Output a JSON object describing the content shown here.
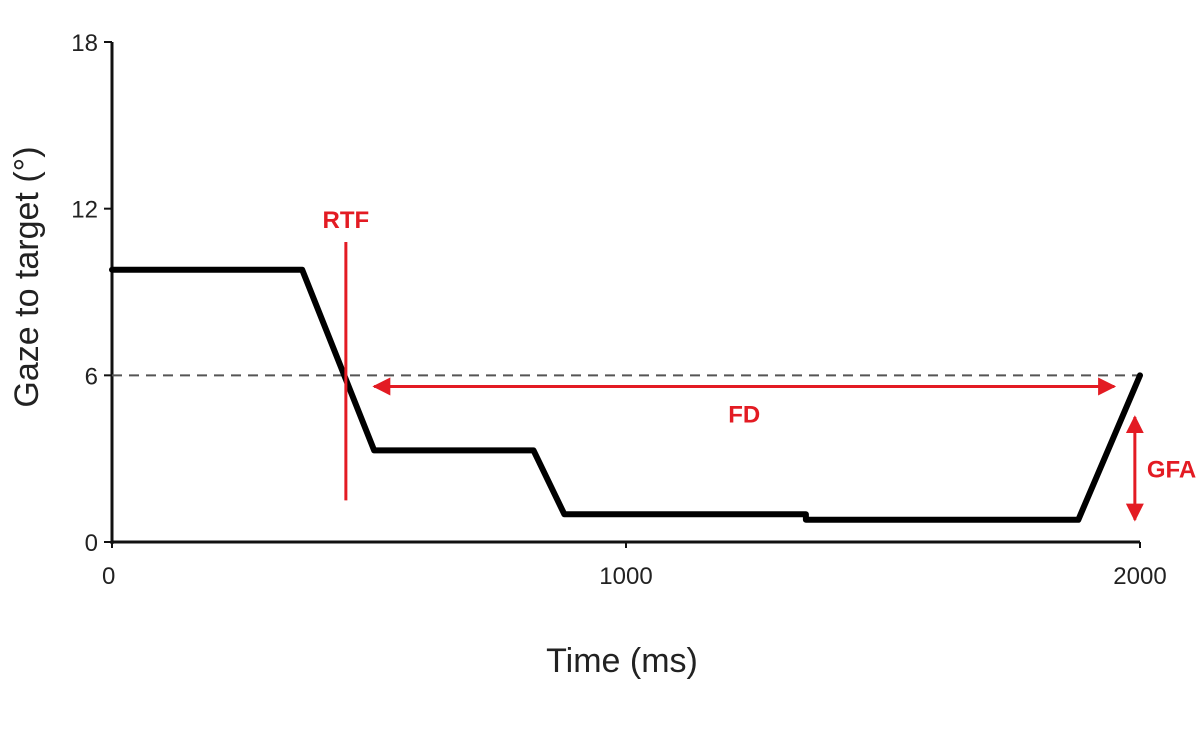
{
  "chart_data": {
    "type": "line",
    "xlabel": "Time (ms)",
    "ylabel": "Gaze to target (°)",
    "xlim": [
      0,
      2000
    ],
    "ylim": [
      0,
      18
    ],
    "xticks": [
      0,
      1000,
      2000
    ],
    "yticks": [
      0,
      6,
      12,
      18
    ],
    "grid": false,
    "series": [
      {
        "x": [
          0,
          370,
          510,
          820,
          880,
          1350,
          1350,
          1850,
          1880,
          2000
        ],
        "y": [
          9.8,
          9.8,
          3.3,
          3.3,
          1.0,
          1.0,
          0.8,
          0.8,
          0.8,
          6.0
        ],
        "color": "#000000"
      }
    ],
    "reference_lines": [
      {
        "axis": "y",
        "value": 6,
        "style": "dashed",
        "color": "#555555"
      }
    ],
    "annotations": [
      {
        "text": "RTF",
        "kind": "vertical-line",
        "x": 455,
        "y_range": [
          1.5,
          10.8
        ],
        "color": "#e31b23"
      },
      {
        "text": "FD",
        "kind": "horizontal-double-arrow",
        "x_range": [
          510,
          1950
        ],
        "y": 5.6,
        "color": "#e31b23"
      },
      {
        "text": "GFA",
        "kind": "vertical-double-arrow",
        "x": 1990,
        "y_range": [
          0.8,
          4.5
        ],
        "color": "#e31b23"
      }
    ]
  }
}
